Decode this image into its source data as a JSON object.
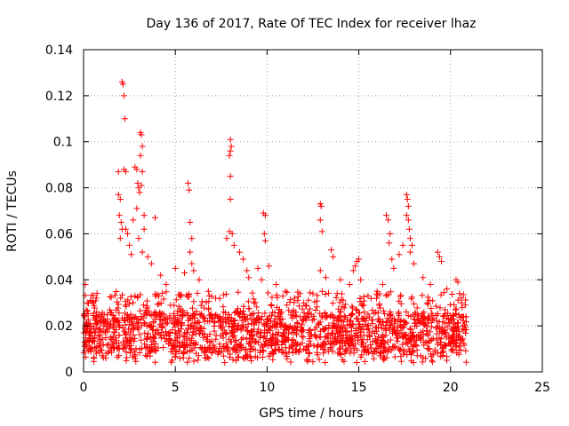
{
  "chart_data": {
    "type": "scatter",
    "title": "Day 136 of 2017, Rate Of TEC Index for receiver lhaz",
    "xlabel": "GPS time / hours",
    "ylabel": "ROTI / TECUs",
    "xlim": [
      0,
      25
    ],
    "ylim": [
      0,
      0.14
    ],
    "xticks": [
      "0",
      "5",
      "10",
      "15",
      "20",
      "25"
    ],
    "yticks": [
      "0",
      "0.02",
      "0.04",
      "0.06",
      "0.08",
      "0.1",
      "0.12",
      "0.14"
    ],
    "grid": true,
    "marker": "+",
    "color": "#ff0000",
    "series": [
      {
        "points": [
          [
            0.1,
            0.038
          ],
          [
            0.2,
            0.03
          ],
          [
            2.1,
            0.126
          ],
          [
            2.15,
            0.125
          ],
          [
            2.2,
            0.12
          ],
          [
            2.25,
            0.11
          ],
          [
            1.9,
            0.087
          ],
          [
            2.2,
            0.088
          ],
          [
            2.3,
            0.087
          ],
          [
            1.9,
            0.077
          ],
          [
            2.0,
            0.075
          ],
          [
            2.1,
            0.062
          ],
          [
            1.95,
            0.068
          ],
          [
            2.0,
            0.058
          ],
          [
            2.05,
            0.065
          ],
          [
            2.3,
            0.062
          ],
          [
            2.4,
            0.06
          ],
          [
            2.5,
            0.055
          ],
          [
            2.6,
            0.051
          ],
          [
            2.8,
            0.089
          ],
          [
            2.9,
            0.088
          ],
          [
            2.95,
            0.082
          ],
          [
            3.0,
            0.08
          ],
          [
            3.05,
            0.078
          ],
          [
            3.1,
            0.104
          ],
          [
            3.15,
            0.103
          ],
          [
            3.2,
            0.098
          ],
          [
            3.1,
            0.094
          ],
          [
            3.2,
            0.087
          ],
          [
            3.15,
            0.081
          ],
          [
            2.9,
            0.071
          ],
          [
            3.3,
            0.068
          ],
          [
            2.7,
            0.066
          ],
          [
            3.3,
            0.062
          ],
          [
            3.0,
            0.058
          ],
          [
            3.2,
            0.052
          ],
          [
            3.5,
            0.05
          ],
          [
            3.9,
            0.067
          ],
          [
            3.7,
            0.047
          ],
          [
            4.2,
            0.042
          ],
          [
            4.5,
            0.038
          ],
          [
            5.0,
            0.045
          ],
          [
            5.5,
            0.043
          ],
          [
            5.7,
            0.082
          ],
          [
            5.75,
            0.079
          ],
          [
            5.8,
            0.065
          ],
          [
            5.9,
            0.058
          ],
          [
            5.8,
            0.052
          ],
          [
            5.9,
            0.047
          ],
          [
            6.0,
            0.044
          ],
          [
            6.3,
            0.04
          ],
          [
            6.8,
            0.035
          ],
          [
            7.2,
            0.032
          ],
          [
            7.8,
            0.058
          ],
          [
            7.95,
            0.061
          ],
          [
            8.0,
            0.101
          ],
          [
            8.05,
            0.098
          ],
          [
            8.0,
            0.096
          ],
          [
            7.95,
            0.094
          ],
          [
            8.0,
            0.085
          ],
          [
            8.0,
            0.075
          ],
          [
            8.1,
            0.06
          ],
          [
            8.2,
            0.055
          ],
          [
            8.5,
            0.052
          ],
          [
            8.7,
            0.049
          ],
          [
            8.9,
            0.044
          ],
          [
            9.0,
            0.041
          ],
          [
            9.5,
            0.045
          ],
          [
            9.7,
            0.04
          ],
          [
            9.8,
            0.069
          ],
          [
            9.9,
            0.068
          ],
          [
            9.85,
            0.06
          ],
          [
            9.9,
            0.057
          ],
          [
            10.1,
            0.046
          ],
          [
            10.5,
            0.038
          ],
          [
            11.0,
            0.035
          ],
          [
            11.5,
            0.032
          ],
          [
            12.0,
            0.03
          ],
          [
            12.5,
            0.034
          ],
          [
            12.9,
            0.073
          ],
          [
            12.95,
            0.072
          ],
          [
            12.9,
            0.066
          ],
          [
            13.0,
            0.061
          ],
          [
            12.9,
            0.044
          ],
          [
            13.2,
            0.041
          ],
          [
            13.5,
            0.053
          ],
          [
            13.6,
            0.05
          ],
          [
            14.0,
            0.04
          ],
          [
            14.5,
            0.038
          ],
          [
            14.7,
            0.044
          ],
          [
            14.8,
            0.046
          ],
          [
            14.9,
            0.048
          ],
          [
            15.0,
            0.049
          ],
          [
            15.1,
            0.04
          ],
          [
            15.5,
            0.033
          ],
          [
            16.0,
            0.035
          ],
          [
            16.3,
            0.038
          ],
          [
            16.5,
            0.068
          ],
          [
            16.6,
            0.066
          ],
          [
            16.7,
            0.06
          ],
          [
            16.65,
            0.056
          ],
          [
            16.8,
            0.049
          ],
          [
            16.9,
            0.045
          ],
          [
            17.2,
            0.051
          ],
          [
            17.4,
            0.055
          ],
          [
            17.6,
            0.077
          ],
          [
            17.65,
            0.075
          ],
          [
            17.7,
            0.072
          ],
          [
            17.6,
            0.068
          ],
          [
            17.7,
            0.066
          ],
          [
            17.75,
            0.062
          ],
          [
            17.8,
            0.058
          ],
          [
            17.9,
            0.055
          ],
          [
            17.8,
            0.052
          ],
          [
            18.0,
            0.047
          ],
          [
            18.5,
            0.041
          ],
          [
            18.9,
            0.038
          ],
          [
            19.3,
            0.052
          ],
          [
            19.4,
            0.05
          ],
          [
            19.5,
            0.048
          ],
          [
            19.8,
            0.036
          ],
          [
            20.3,
            0.04
          ],
          [
            20.4,
            0.039
          ],
          [
            20.6,
            0.03
          ],
          [
            20.8,
            0.029
          ]
        ],
        "dense_band": {
          "x_range": [
            0,
            20.9
          ],
          "y_floor": 0.004,
          "y_ceiling": 0.035,
          "typical_range": [
            0.008,
            0.026
          ]
        }
      }
    ]
  }
}
